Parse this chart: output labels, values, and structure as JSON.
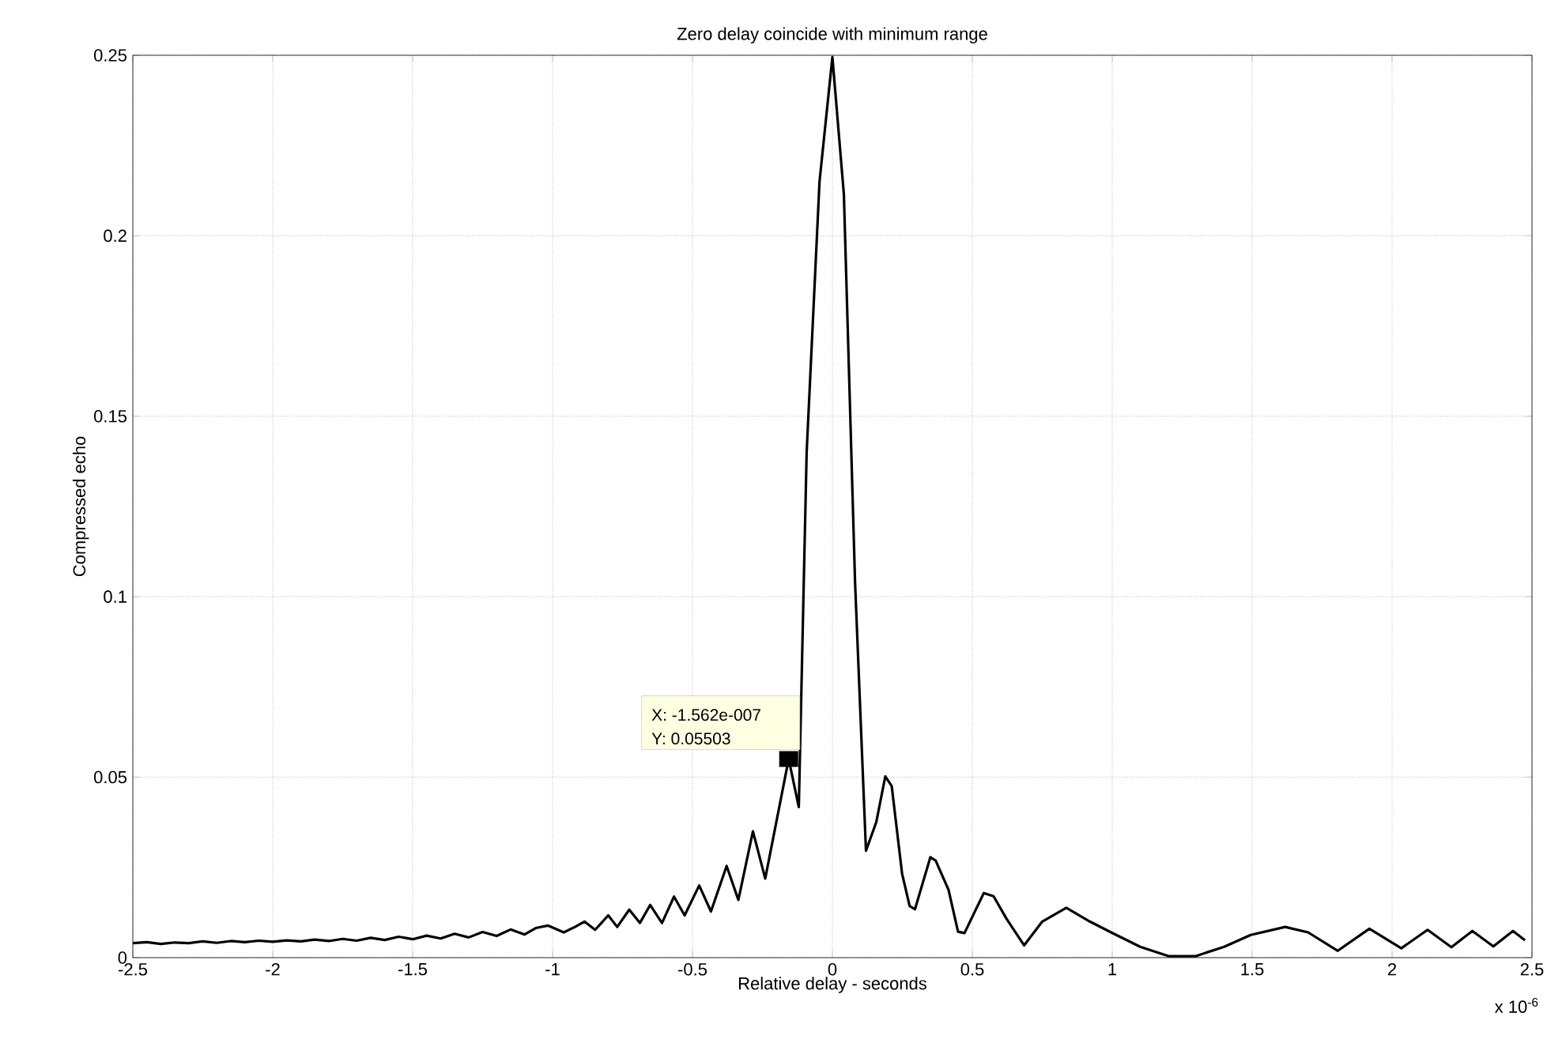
{
  "chart_data": {
    "type": "line",
    "title": "Zero delay coincide with minimum range",
    "xlabel": "Relative delay - seconds",
    "ylabel": "Compressed echo",
    "xlim": [
      -2.5,
      2.5
    ],
    "ylim": [
      0,
      0.25
    ],
    "xticks": [
      -2.5,
      -2,
      -1.5,
      -1,
      -0.5,
      0,
      0.5,
      1,
      1.5,
      2,
      2.5
    ],
    "yticks": [
      0,
      0.05,
      0.1,
      0.15,
      0.2,
      0.25
    ],
    "grid": true,
    "marker": "none",
    "line_style": "solid",
    "annotations": [
      {
        "text": "X: -1.562e-007",
        "x": -0.1562,
        "y": 0.05503
      },
      "Y: 0.05503",
      "x 10$^{-6}$"
    ],
    "series": [
      {
        "color": "#000000",
        "x": [
          -2.5,
          -2.45,
          -2.4,
          -2.35,
          -2.3,
          -2.25,
          -2.2,
          -2.15,
          -2.1,
          -2.05,
          -2.0,
          -1.95,
          -1.9,
          -1.85,
          -1.8,
          -1.75,
          -1.7,
          -1.65,
          -1.6,
          -1.55,
          -1.5,
          -1.45,
          -1.4,
          -1.35,
          -1.3,
          -1.25,
          -1.2,
          -1.15,
          -1.1,
          -1.06,
          -1.017,
          -0.96,
          -0.92,
          -0.886,
          -0.848,
          -0.801,
          -0.769,
          -0.726,
          -0.688,
          -0.651,
          -0.609,
          -0.566,
          -0.528,
          -0.476,
          -0.434,
          -0.378,
          -0.336,
          -0.284,
          -0.24,
          -0.1562,
          -0.12,
          -0.092,
          -0.046,
          0,
          0.041,
          0.081,
          0.12,
          0.157,
          0.189,
          0.212,
          0.249,
          0.276,
          0.295,
          0.35,
          0.369,
          0.415,
          0.449,
          0.472,
          0.541,
          0.576,
          0.622,
          0.685,
          0.75,
          0.836,
          0.92,
          0.996,
          1.1,
          1.203,
          1.297,
          1.4,
          1.495,
          1.618,
          1.7,
          1.806,
          1.919,
          2.033,
          2.127,
          2.212,
          2.287,
          2.362,
          2.432,
          2.475
        ],
        "values": [
          0.004,
          0.0043,
          0.0038,
          0.0042,
          0.004,
          0.0045,
          0.0041,
          0.0046,
          0.0043,
          0.0047,
          0.0044,
          0.0048,
          0.0045,
          0.005,
          0.0046,
          0.0052,
          0.0047,
          0.0055,
          0.0049,
          0.0058,
          0.0051,
          0.0061,
          0.0053,
          0.0066,
          0.0056,
          0.0071,
          0.006,
          0.0078,
          0.0064,
          0.0082,
          0.0089,
          0.007,
          0.0085,
          0.01,
          0.0077,
          0.0117,
          0.0085,
          0.0133,
          0.0096,
          0.0146,
          0.0096,
          0.0169,
          0.0117,
          0.02,
          0.0128,
          0.0254,
          0.016,
          0.035,
          0.0219,
          0.05503,
          0.0417,
          0.14,
          0.215,
          0.2495,
          0.2115,
          0.104,
          0.0296,
          0.0376,
          0.0502,
          0.0475,
          0.0233,
          0.0143,
          0.0134,
          0.0278,
          0.0269,
          0.0188,
          0.0072,
          0.0068,
          0.0179,
          0.017,
          0.0108,
          0.0034,
          0.01,
          0.0138,
          0.01,
          0.007,
          0.003,
          0.0004,
          0.0004,
          0.003,
          0.0063,
          0.0085,
          0.007,
          0.0019,
          0.008,
          0.0026,
          0.0077,
          0.0029,
          0.0074,
          0.0031,
          0.0074,
          0.0048
        ]
      }
    ]
  }
}
